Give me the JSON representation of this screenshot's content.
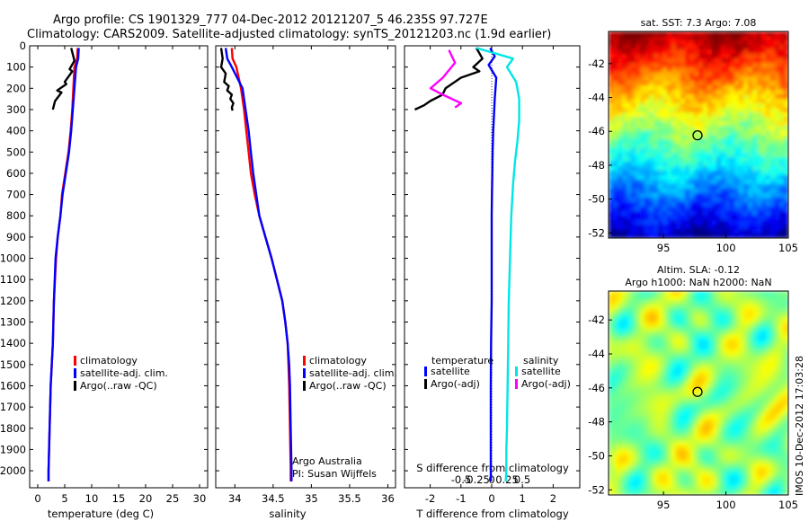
{
  "title_line1": "Argo profile: CS 1901329_777 04-Dec-2012 20121207_5 46.235S 97.727E",
  "title_line2": "Climatology: CARS2009. Satellite-adjusted climatology: synTS_20121203.nc (1.9d earlier)",
  "credits": {
    "line1": "Argo Australia",
    "line2": "PI: Susan Wijffels"
  },
  "stamp": "IMOS 10-Dec-2012 17:03:28",
  "colors": {
    "climatology": "#ff0000",
    "satellite": "#0000ff",
    "argo": "#000000",
    "sal_satellite": "#00e6e6",
    "sal_argo": "#ff00ff",
    "marker": "#000000"
  },
  "chart_data": [
    {
      "type": "line",
      "xlabel": "temperature (deg C)",
      "ylabel": "",
      "xlim": [
        -1.5,
        31.5
      ],
      "ylim": [
        2080,
        0
      ],
      "x_ticks": [
        0,
        5,
        10,
        15,
        20,
        25,
        30
      ],
      "y_ticks": [
        0,
        100,
        200,
        300,
        400,
        500,
        600,
        700,
        800,
        900,
        1000,
        1100,
        1200,
        1300,
        1400,
        1500,
        1600,
        1700,
        1800,
        1900,
        2000
      ],
      "legend": [
        "climatology",
        "satellite-adj. clim.",
        "Argo(..raw -QC)"
      ],
      "legend_placement": "lower-center",
      "series": [
        {
          "name": "climatology",
          "x": [
            7.4,
            7.3,
            6.8,
            6.6,
            6.4,
            6.1,
            5.7,
            5.1,
            4.5,
            4.2,
            3.7,
            3.4,
            3.0,
            2.8,
            2.6,
            2.4,
            2.3,
            2.2,
            2.1,
            2.0,
            2.0
          ],
          "y": [
            10,
            60,
            100,
            200,
            300,
            400,
            500,
            600,
            700,
            800,
            900,
            1000,
            1200,
            1400,
            1500,
            1600,
            1700,
            1800,
            1900,
            2000,
            2050
          ]
        },
        {
          "name": "satellite-adj. clim.",
          "x": [
            7.6,
            7.5,
            7.1,
            6.8,
            6.5,
            6.2,
            5.8,
            5.2,
            4.6,
            4.2,
            3.7,
            3.3,
            3.0,
            2.8,
            2.6,
            2.4,
            2.3,
            2.2,
            2.1,
            2.0,
            2.0
          ],
          "y": [
            10,
            60,
            100,
            200,
            300,
            400,
            500,
            600,
            700,
            800,
            900,
            1000,
            1200,
            1400,
            1500,
            1600,
            1700,
            1800,
            1900,
            2000,
            2050
          ]
        },
        {
          "name": "Argo(..raw -QC)",
          "x": [
            6.2,
            6.8,
            5.9,
            6.4,
            5.0,
            5.3,
            3.6,
            4.4,
            3.2,
            2.8
          ],
          "y": [
            10,
            70,
            110,
            120,
            170,
            180,
            210,
            220,
            260,
            300
          ]
        }
      ]
    },
    {
      "type": "line",
      "xlabel": "salinity",
      "ylabel": "",
      "xlim": [
        33.75,
        36.1
      ],
      "ylim": [
        2080,
        0
      ],
      "x_ticks": [
        34,
        34.5,
        35,
        35.5,
        36
      ],
      "x_tick_labels": [
        "34",
        "34.5",
        "35",
        "35.5",
        "36"
      ],
      "legend": [
        "climatology",
        "satellite-adj. clim.",
        "Argo(..raw -QC)"
      ],
      "legend_placement": "lower-right",
      "series": [
        {
          "name": "climatology",
          "x": [
            33.96,
            33.97,
            34.02,
            34.08,
            34.12,
            34.15,
            34.18,
            34.21,
            34.26,
            34.32,
            34.4,
            34.48,
            34.55,
            34.62,
            34.66,
            34.69,
            34.7,
            34.71,
            34.72,
            34.73,
            34.73
          ],
          "y": [
            10,
            60,
            100,
            200,
            300,
            400,
            500,
            600,
            700,
            800,
            900,
            1000,
            1100,
            1200,
            1300,
            1400,
            1500,
            1600,
            1800,
            2000,
            2050
          ]
        },
        {
          "name": "satellite-adj. clim.",
          "x": [
            33.88,
            33.9,
            33.96,
            34.1,
            34.14,
            34.18,
            34.21,
            34.24,
            34.28,
            34.32,
            34.4,
            34.48,
            34.55,
            34.62,
            34.66,
            34.69,
            34.71,
            34.72,
            34.73,
            34.74,
            34.74
          ],
          "y": [
            10,
            60,
            100,
            200,
            300,
            400,
            500,
            600,
            700,
            800,
            900,
            1000,
            1100,
            1200,
            1300,
            1400,
            1500,
            1600,
            1800,
            2000,
            2050
          ]
        },
        {
          "name": "Argo(..raw -QC)",
          "x": [
            33.82,
            33.84,
            33.82,
            33.88,
            33.86,
            33.92,
            33.9,
            33.96,
            33.94,
            33.98,
            33.96,
            33.97
          ],
          "y": [
            10,
            60,
            100,
            130,
            170,
            190,
            210,
            230,
            250,
            270,
            290,
            305
          ]
        }
      ]
    },
    {
      "type": "line",
      "xlabel": "T difference from climatology",
      "top_label": "S difference from climatology",
      "xlim": [
        -2.6,
        2.9
      ],
      "ylim": [
        2080,
        0
      ],
      "x_ticks": [
        -2,
        -1,
        0,
        1,
        2
      ],
      "top_ticks": [
        -0.5,
        -0.25,
        0,
        0.25,
        0.5
      ],
      "legend_groups": [
        {
          "heading": "temperature",
          "items": [
            "satellite",
            "Argo(-adj)"
          ]
        },
        {
          "heading": "salinity",
          "items": [
            "satellite",
            "Argo(-adj)"
          ]
        }
      ],
      "legend_placement": "lower-center",
      "series": [
        {
          "name": "temperature satellite",
          "x": [
            -0.05,
            0.1,
            -0.1,
            0.15,
            0.1,
            0.05,
            0.03,
            0.02,
            0.01,
            0.0,
            0.0,
            0.0,
            -0.02,
            -0.03,
            -0.03,
            -0.03,
            -0.03
          ],
          "y": [
            10,
            50,
            90,
            150,
            250,
            400,
            500,
            600,
            700,
            800,
            1000,
            1200,
            1400,
            1600,
            1800,
            2000,
            2050
          ]
        },
        {
          "name": "temperature Argo(-adj)",
          "x": [
            -0.5,
            -0.3,
            -0.6,
            -0.4,
            -1.0,
            -1.2,
            -1.5,
            -1.6,
            -2.0,
            -2.2,
            -2.5
          ],
          "y": [
            10,
            60,
            100,
            120,
            150,
            170,
            200,
            230,
            260,
            280,
            300
          ]
        },
        {
          "name": "salinity satellite",
          "x": [
            -0.25,
            0.35,
            0.25,
            0.4,
            0.45,
            0.45,
            0.42,
            0.38,
            0.35,
            0.32,
            0.3,
            0.28,
            0.27,
            0.26,
            0.25,
            0.24,
            0.24,
            0.23
          ],
          "y": [
            10,
            60,
            100,
            170,
            250,
            350,
            450,
            550,
            650,
            800,
            1000,
            1200,
            1400,
            1600,
            1800,
            1900,
            2000,
            2050
          ]
        },
        {
          "name": "salinity Argo(-adj)",
          "x": [
            -0.7,
            -0.6,
            -0.8,
            -1.0,
            -0.8,
            -0.5,
            -0.6
          ],
          "y": [
            20,
            80,
            150,
            200,
            230,
            270,
            290
          ]
        },
        {
          "name": "zero line",
          "x": [
            0,
            0
          ],
          "y": [
            0,
            2050
          ]
        }
      ]
    },
    {
      "type": "heatmap",
      "title": "sat. SST: 7.3 Argo: 7.08",
      "xlim": [
        90.6,
        105
      ],
      "ylim": [
        -52.3,
        -40.1
      ],
      "x_ticks": [
        95,
        100,
        105
      ],
      "y_ticks": [
        -42,
        -44,
        -46,
        -48,
        -50,
        -52
      ],
      "marker": {
        "lon": 97.727,
        "lat": -46.235
      }
    },
    {
      "type": "heatmap",
      "title": "Altim. SLA: -0.12",
      "subtitle": "Argo h1000: NaN h2000: NaN",
      "xlim": [
        90.6,
        105
      ],
      "ylim": [
        -52.3,
        -40.3
      ],
      "x_ticks": [
        95,
        100,
        105
      ],
      "y_ticks": [
        -42,
        -44,
        -46,
        -48,
        -50,
        -52
      ],
      "marker": {
        "lon": 97.727,
        "lat": -46.235
      }
    }
  ]
}
